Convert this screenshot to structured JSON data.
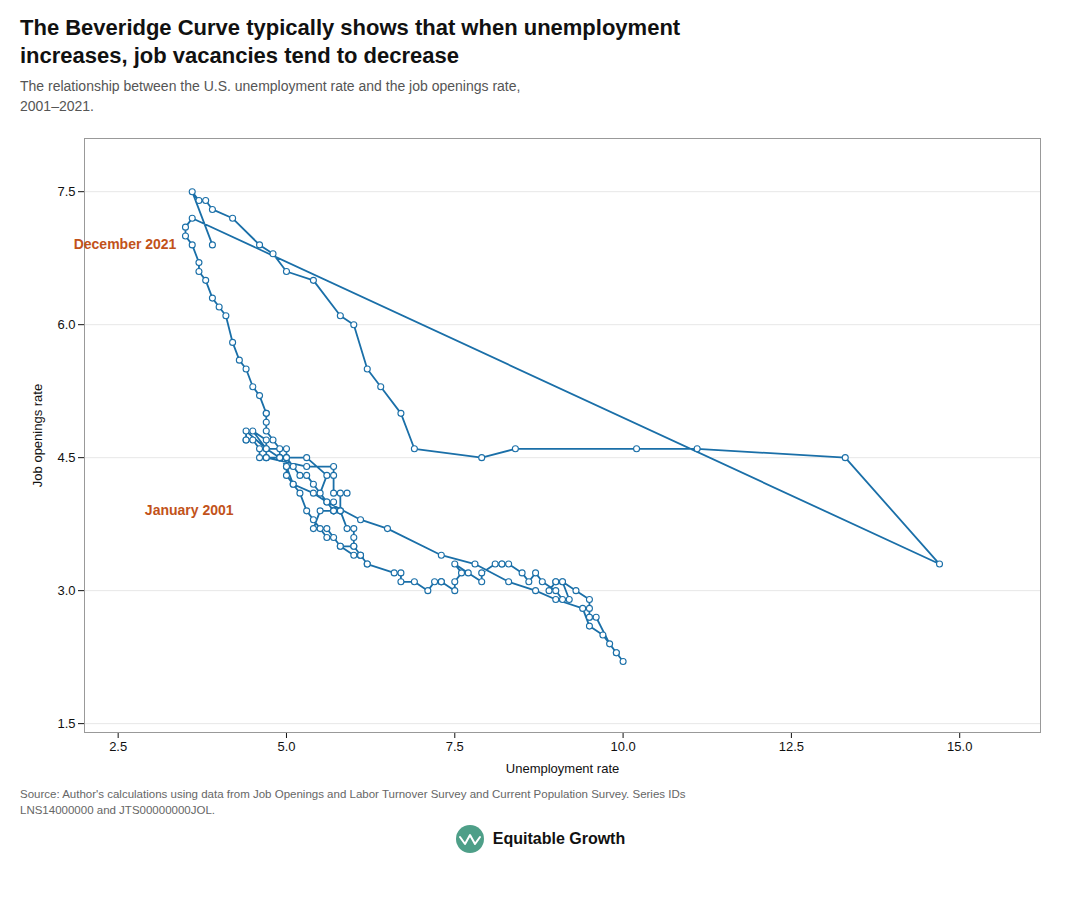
{
  "chart_data": {
    "type": "line",
    "marker": "circle",
    "title": "The Beveridge Curve typically shows that when unemployment\nincreases, job vacancies tend to decrease",
    "subtitle": "The relationship between the U.S. unemployment rate and the job openings rate,\n2001–2021.",
    "xlabel": "Unemployment rate",
    "ylabel": "Job openings rate",
    "source": "Source: Author's calculations using data from Job Openings and Labor Turnover Survey and Current Population Survey. Series IDs\nLNS14000000 and JTS00000000JOL.",
    "logo_text": "Equitable Growth",
    "color": "#1a6fa8",
    "grid": "y",
    "xlim": [
      2.0,
      16.2
    ],
    "ylim": [
      1.4,
      8.1
    ],
    "xticks": [
      2.5,
      {
        "value": 5.0,
        "label": "5.0"
      },
      7.5,
      {
        "value": 10.0,
        "label": "10.0"
      },
      12.5,
      {
        "value": 15.0,
        "label": "15.0"
      }
    ],
    "yticks": [
      1.5,
      {
        "value": 3.0,
        "label": "3.0"
      },
      4.5,
      {
        "value": 6.0,
        "label": "6.0"
      },
      7.5
    ],
    "x": [
      5.7,
      5.5,
      5.6,
      5.3,
      5.0,
      5.0,
      4.7,
      4.5,
      4.7,
      4.7,
      5.3,
      5.7,
      5.7,
      5.7,
      5.9,
      5.8,
      5.8,
      5.8,
      5.8,
      5.9,
      6.0,
      6.0,
      6.0,
      6.1,
      6.0,
      5.8,
      5.6,
      5.4,
      5.5,
      5.7,
      5.7,
      5.7,
      5.6,
      5.4,
      5.3,
      5.2,
      5.1,
      5.0,
      4.9,
      4.7,
      4.6,
      4.6,
      4.5,
      4.4,
      4.4,
      4.4,
      4.7,
      4.9,
      5.0,
      5.1,
      5.4,
      5.6,
      6.1,
      6.5,
      7.3,
      7.8,
      8.3,
      8.7,
      9.0,
      9.4,
      9.5,
      9.7,
      9.9,
      10.0,
      9.9,
      9.8,
      9.6,
      9.5,
      9.5,
      9.5,
      9.5,
      9.3,
      9.1,
      9.0,
      8.9,
      9.0,
      9.1,
      9.2,
      9.1,
      9.0,
      8.8,
      8.7,
      8.6,
      8.5,
      8.3,
      8.2,
      8.2,
      8.1,
      7.9,
      7.9,
      7.7,
      7.5,
      7.6,
      7.5,
      7.5,
      7.3,
      7.3,
      7.3,
      7.2,
      7.1,
      6.9,
      6.7,
      6.7,
      6.6,
      6.2,
      6.2,
      6.1,
      6.1,
      6.0,
      5.8,
      5.7,
      5.6,
      5.5,
      5.4,
      5.3,
      5.2,
      5.1,
      5.0,
      5.0,
      4.9,
      4.9,
      4.9,
      4.8,
      4.7,
      4.7,
      4.7,
      4.7,
      4.6,
      4.5,
      4.4,
      4.3,
      4.2,
      4.1,
      4.0,
      3.9,
      3.8,
      3.7,
      3.7,
      3.6,
      3.5,
      3.5,
      3.6,
      14.7,
      13.3,
      11.1,
      10.2,
      8.4,
      7.9,
      6.9,
      6.7,
      6.4,
      6.2,
      6.0,
      5.8,
      5.4,
      5.0,
      4.8,
      4.6,
      4.2,
      3.9,
      3.8,
      3.7,
      3.6,
      3.9
    ],
    "values": [
      3.9,
      4.1,
      4.3,
      4.5,
      4.5,
      4.6,
      4.6,
      4.8,
      4.7,
      4.5,
      4.4,
      4.4,
      4.3,
      4.1,
      4.1,
      4.1,
      3.9,
      3.9,
      3.9,
      3.7,
      3.7,
      3.6,
      3.5,
      3.4,
      3.4,
      3.5,
      3.7,
      3.7,
      3.9,
      3.9,
      4.0,
      3.9,
      4.0,
      4.2,
      4.3,
      4.3,
      4.4,
      4.5,
      4.5,
      4.5,
      4.5,
      4.6,
      4.7,
      4.7,
      4.7,
      4.8,
      4.6,
      4.5,
      4.4,
      4.2,
      4.1,
      4.0,
      3.8,
      3.7,
      3.4,
      3.3,
      3.1,
      3.0,
      2.9,
      2.8,
      2.6,
      2.5,
      2.3,
      2.2,
      2.3,
      2.4,
      2.7,
      2.7,
      2.7,
      2.8,
      2.9,
      3.0,
      3.1,
      3.1,
      3.0,
      3.1,
      3.1,
      2.9,
      2.9,
      3.0,
      3.1,
      3.2,
      3.1,
      3.2,
      3.3,
      3.3,
      3.3,
      3.3,
      3.2,
      3.1,
      3.2,
      3.3,
      3.2,
      3.1,
      3.0,
      3.1,
      3.1,
      3.1,
      3.1,
      3.0,
      3.1,
      3.1,
      3.2,
      3.2,
      3.3,
      3.3,
      3.4,
      3.4,
      3.5,
      3.5,
      3.6,
      3.6,
      3.7,
      3.8,
      3.9,
      4.1,
      4.2,
      4.3,
      4.4,
      4.5,
      4.5,
      4.6,
      4.7,
      4.8,
      4.9,
      5.0,
      5.0,
      5.2,
      5.3,
      5.5,
      5.6,
      5.8,
      6.1,
      6.2,
      6.3,
      6.5,
      6.6,
      6.7,
      6.9,
      7.0,
      7.1,
      7.2,
      3.3,
      4.5,
      4.6,
      4.6,
      4.6,
      4.5,
      4.6,
      5.0,
      5.3,
      5.5,
      6.0,
      6.1,
      6.5,
      6.6,
      6.8,
      6.9,
      7.2,
      7.3,
      7.4,
      7.4,
      7.5,
      6.9
    ],
    "annotations": [
      {
        "text": "January 2001",
        "x": 5.7,
        "y": 3.9
      },
      {
        "text": "December 2021",
        "x": 3.9,
        "y": 6.9
      }
    ]
  }
}
